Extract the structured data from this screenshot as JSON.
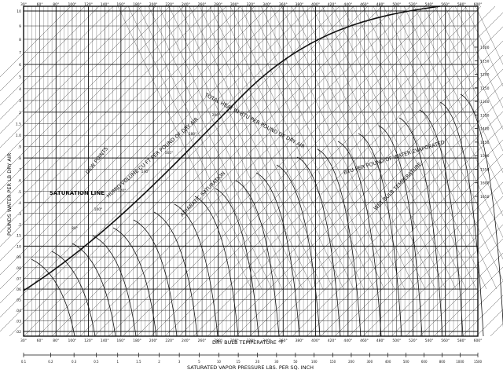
{
  "chart_data": {
    "type": "psychrometric",
    "title": "",
    "xlabel": "DRY BULB TEMPERATURE °F",
    "ylabel": "POUNDS WATER PER LB DRY AIR",
    "x_scale_label": "SATURATED VAPOR PRESSURE LBS. PER SQ. INCH",
    "annotations": {
      "saturation": "SATURATION LINE",
      "dew_points": "DEW POINTS",
      "humid_volume": "HUMID VOLUME CU FT PER POUND OF DRY AIR",
      "enthalpy": "TOTAL HEAT IN BTU PER POUND OF DRY AIR",
      "latent_heat": "BTU PER POUND OF WATER EVAPORATED",
      "wet_bulb": "WET BULB TEMPERATURE",
      "adiabatic": "ADIABATIC SATURATION"
    },
    "top_ticks": [
      "30°",
      "60°",
      "80°",
      "100°",
      "120°",
      "140°",
      "160°",
      "180°",
      "200°",
      "220°",
      "240°",
      "260°",
      "280°",
      "300°",
      "320°",
      "340°",
      "360°",
      "380°",
      "400°",
      "420°",
      "440°",
      "460°",
      "480°",
      "500°",
      "520°",
      "540°",
      "560°",
      "580°",
      "600°"
    ],
    "bottom_ticks": [
      "30°",
      "60°",
      "80°",
      "100°",
      "120°",
      "140°",
      "160°",
      "180°",
      "200°",
      "220°",
      "240°",
      "260°",
      "280°",
      "300°",
      "320°",
      "340°",
      "360°",
      "380°",
      "400°",
      "420°",
      "440°",
      "460°",
      "480°",
      "500°",
      "520°",
      "540°",
      "560°",
      "580°",
      "600°"
    ],
    "vapor_ticks": [
      "0.1",
      "0.2",
      "0.3",
      "0.5",
      "1",
      "1.5",
      "2",
      "3",
      "5",
      "10",
      "15",
      "20",
      "30",
      "50",
      "100",
      "150",
      "200",
      "300",
      "400",
      "500",
      "600",
      "800",
      "1000",
      "1500"
    ],
    "left_ticks": [
      "10",
      "9",
      "8",
      "7",
      "6",
      "5",
      "4",
      "3",
      "2",
      "1.5",
      "1.0",
      ".9",
      ".8",
      ".7",
      ".6",
      ".5",
      ".4",
      ".3",
      ".2",
      ".15",
      ".10",
      ".09",
      ".08",
      ".07",
      ".06",
      ".05",
      ".04",
      ".03",
      ".02"
    ],
    "right_ticks": [
      "1100",
      "1150",
      "1200",
      "1250",
      "1300",
      "1350",
      "1400",
      "1450",
      "1500",
      "1550",
      "1600",
      "1650"
    ],
    "wet_bulb_ticks": [
      "80°",
      "100°",
      "120°",
      "140°",
      "160°",
      "180°",
      "200°"
    ]
  }
}
